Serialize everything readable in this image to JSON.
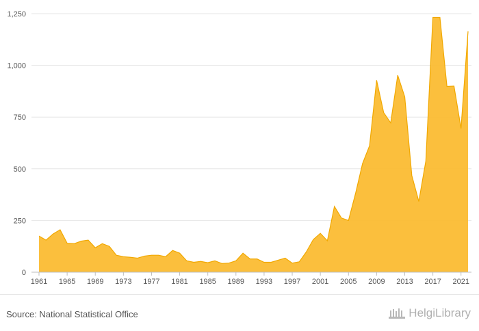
{
  "chart_data": {
    "type": "area",
    "title": "",
    "xlabel": "",
    "ylabel": "",
    "x": [
      1961,
      1962,
      1963,
      1964,
      1965,
      1966,
      1967,
      1968,
      1969,
      1970,
      1971,
      1972,
      1973,
      1974,
      1975,
      1976,
      1977,
      1978,
      1979,
      1980,
      1981,
      1982,
      1983,
      1984,
      1985,
      1986,
      1987,
      1988,
      1989,
      1990,
      1991,
      1992,
      1993,
      1994,
      1995,
      1996,
      1997,
      1998,
      1999,
      2000,
      2001,
      2002,
      2003,
      2004,
      2005,
      2006,
      2007,
      2008,
      2009,
      2010,
      2011,
      2012,
      2013,
      2014,
      2015,
      2016,
      2017,
      2018,
      2019,
      2020,
      2021,
      2022
    ],
    "series": [
      {
        "values": [
          175,
          155,
          185,
          205,
          140,
          138,
          150,
          155,
          118,
          138,
          125,
          82,
          75,
          72,
          68,
          78,
          82,
          82,
          75,
          105,
          92,
          55,
          48,
          52,
          46,
          55,
          42,
          44,
          55,
          92,
          64,
          64,
          48,
          48,
          58,
          68,
          44,
          50,
          98,
          158,
          188,
          152,
          318,
          262,
          250,
          380,
          525,
          612,
          928,
          772,
          722,
          952,
          848,
          468,
          342,
          538,
          1232,
          1232,
          898,
          900,
          695,
          1165
        ]
      }
    ],
    "xticks": [
      "1961",
      "1965",
      "1969",
      "1973",
      "1977",
      "1981",
      "1985",
      "1989",
      "1993",
      "1997",
      "2001",
      "2005",
      "2009",
      "2013",
      "2017",
      "2021"
    ],
    "yticks": [
      "0",
      "250",
      "500",
      "750",
      "1,000",
      "1,250"
    ],
    "ylim": [
      0,
      1250
    ],
    "xlim": [
      1961,
      2022
    ],
    "grid": true,
    "legend": "none",
    "fill_color": "#FBBC33",
    "line_color": "#F1A800"
  },
  "footer": {
    "source": "Source: National Statistical Office",
    "brand": "HelgiLibrary"
  }
}
